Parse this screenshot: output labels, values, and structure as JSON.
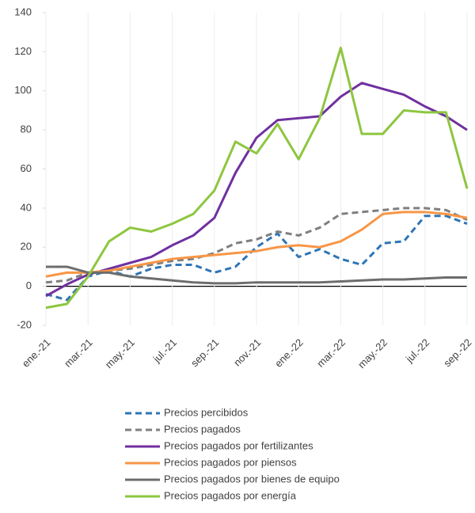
{
  "chart_data": {
    "type": "line",
    "categories": [
      "ene.-21",
      null,
      "mar.-21",
      null,
      "may.-21",
      null,
      "jul.-21",
      null,
      "sep.-21",
      null,
      "nov.-21",
      null,
      "ene.-22",
      null,
      "mar.-22",
      null,
      "may.-22",
      null,
      "jul.-22",
      null,
      "sep.-22"
    ],
    "ylim": [
      -20,
      140
    ],
    "yticks": [
      -20,
      0,
      20,
      40,
      60,
      80,
      100,
      120,
      140
    ],
    "legend": "bottom",
    "series": [
      {
        "name": "Precios percibidos",
        "color": "#2e75b6",
        "dashed": true,
        "values": [
          -4,
          -7,
          5,
          8,
          5,
          9,
          11,
          11,
          7,
          10,
          20,
          27,
          15,
          19,
          14,
          11,
          22,
          23,
          36,
          36,
          32
        ]
      },
      {
        "name": "Precios pagados",
        "color": "#7f7f7f",
        "dashed": true,
        "values": [
          2,
          3,
          7,
          8,
          9,
          11,
          13,
          14,
          17,
          22,
          24,
          28,
          26,
          30,
          37,
          38,
          39,
          40,
          40,
          39,
          34
        ]
      },
      {
        "name": "Precios pagados por fertilizantes",
        "color": "#7030a0",
        "dashed": false,
        "values": [
          -5,
          1,
          6,
          9,
          12,
          15,
          21,
          26,
          35,
          58,
          76,
          85,
          86,
          87,
          97,
          104,
          101,
          98,
          92,
          87,
          80
        ]
      },
      {
        "name": "Precios pagados por piensos",
        "color": "#f79646",
        "dashed": false,
        "values": [
          5,
          7,
          7,
          8,
          10,
          12,
          14,
          15,
          16,
          17,
          18,
          20,
          21,
          20,
          23,
          29,
          37,
          38,
          38,
          37,
          35
        ]
      },
      {
        "name": "Precios pagados por bienes de equipo",
        "color": "#6d6d6d",
        "dashed": false,
        "values": [
          10,
          10,
          7,
          7,
          5,
          4,
          3,
          2,
          1.5,
          1.5,
          2,
          2,
          2,
          2,
          2.5,
          3,
          3.5,
          3.5,
          4,
          4.5,
          4.5
        ]
      },
      {
        "name": "Precios pagados por energía",
        "color": "#8dc63f",
        "dashed": false,
        "values": [
          -11,
          -9,
          5,
          23,
          30,
          28,
          32,
          37,
          49,
          74,
          68,
          83,
          65,
          86,
          122,
          78,
          78,
          90,
          89,
          89,
          50
        ]
      }
    ]
  }
}
